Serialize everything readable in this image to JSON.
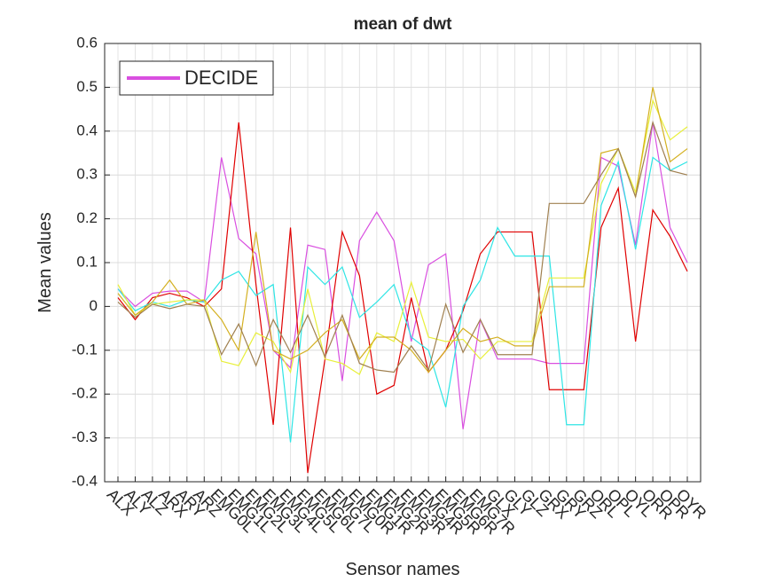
{
  "chart_data": {
    "type": "line",
    "title": "mean of dwt",
    "x_label": "Sensor names",
    "y_label": "Mean values",
    "categories": [
      "ALX",
      "ALY",
      "ALZ",
      "ARX",
      "ARY",
      "ARZ",
      "EMG0L",
      "EMG1L",
      "EMG2L",
      "EMG3L",
      "EMG4L",
      "EMG5L",
      "EMG6L",
      "EMG7L",
      "EMG0R",
      "EMG1R",
      "EMG2R",
      "EMG3R",
      "EMG4R",
      "EMG5R",
      "EMG6R",
      "EMG7R",
      "GLX",
      "GLY",
      "GLZ",
      "GRX",
      "GRY",
      "GRZ",
      "ORL",
      "OPL",
      "OYL",
      "ORR",
      "OPR",
      "OYR"
    ],
    "ylim": [
      -0.4,
      0.6
    ],
    "yticks": [
      -0.4,
      -0.3,
      -0.2,
      -0.1,
      0,
      0.1,
      0.2,
      0.3,
      0.4,
      0.5,
      0.6
    ],
    "grid": true,
    "legend": "upper left",
    "series": [
      {
        "name": "DECIDE",
        "color": "#d94fe0",
        "values": [
          0.04,
          0,
          0.03,
          0.035,
          0.035,
          0.01,
          0.34,
          0.155,
          0.12,
          -0.1,
          -0.14,
          0.14,
          0.13,
          -0.17,
          0.15,
          0.215,
          0.15,
          -0.08,
          0.095,
          0.12,
          -0.28,
          -0.03,
          -0.12,
          -0.12,
          -0.12,
          -0.13,
          -0.13,
          -0.13,
          0.34,
          0.32,
          0.14,
          0.42,
          0.18,
          0.1
        ]
      },
      {
        "color": "#e00000",
        "values": [
          0.02,
          -0.03,
          0.02,
          0.03,
          0.02,
          0,
          0.04,
          0.42,
          0.05,
          -0.27,
          0.18,
          -0.38,
          -0.12,
          0.17,
          0.07,
          -0.2,
          -0.18,
          0.02,
          -0.15,
          -0.1,
          -0.01,
          0.12,
          0.17,
          0.17,
          0.17,
          -0.19,
          -0.19,
          -0.19,
          0.18,
          0.27,
          -0.08,
          0.22,
          0.16,
          0.08
        ]
      },
      {
        "color": "#2ee5e5",
        "values": [
          0.04,
          -0.01,
          0.01,
          0,
          0.015,
          0.01,
          0.06,
          0.08,
          0.025,
          0.05,
          -0.31,
          0.09,
          0.05,
          0.09,
          -0.025,
          0.01,
          0.05,
          -0.07,
          -0.1,
          -0.23,
          0,
          0.06,
          0.18,
          0.115,
          0.115,
          0.115,
          -0.27,
          -0.27,
          0.23,
          0.33,
          0.13,
          0.34,
          0.31,
          0.33
        ]
      },
      {
        "color": "#e8ef3a",
        "values": [
          0.05,
          -0.02,
          0.005,
          0.01,
          0.015,
          0.015,
          -0.125,
          -0.135,
          -0.06,
          -0.08,
          -0.15,
          0.04,
          -0.12,
          -0.13,
          -0.155,
          -0.06,
          -0.08,
          0.055,
          -0.07,
          -0.08,
          -0.075,
          -0.12,
          -0.08,
          -0.08,
          -0.08,
          0.065,
          0.065,
          0.065,
          0.28,
          0.36,
          0.26,
          0.47,
          0.38,
          0.41
        ]
      },
      {
        "color": "#d4b020",
        "values": [
          0.03,
          -0.02,
          0.01,
          0.06,
          0.005,
          0.015,
          -0.03,
          -0.1,
          0.17,
          -0.1,
          -0.12,
          -0.1,
          -0.06,
          -0.03,
          -0.12,
          -0.07,
          -0.07,
          -0.1,
          -0.15,
          -0.1,
          -0.05,
          -0.08,
          -0.07,
          -0.09,
          -0.09,
          0.045,
          0.045,
          0.045,
          0.35,
          0.36,
          0.25,
          0.5,
          0.33,
          0.36
        ]
      },
      {
        "color": "#a08050",
        "values": [
          0.01,
          -0.025,
          0.005,
          -0.005,
          0.005,
          0,
          -0.11,
          -0.04,
          -0.135,
          -0.03,
          -0.105,
          -0.02,
          -0.115,
          -0.02,
          -0.13,
          -0.145,
          -0.15,
          -0.09,
          -0.145,
          0.005,
          -0.105,
          -0.03,
          -0.11,
          -0.11,
          -0.11,
          0.235,
          0.235,
          0.235,
          0.3,
          0.36,
          0.25,
          0.42,
          0.31,
          0.3
        ]
      }
    ]
  }
}
